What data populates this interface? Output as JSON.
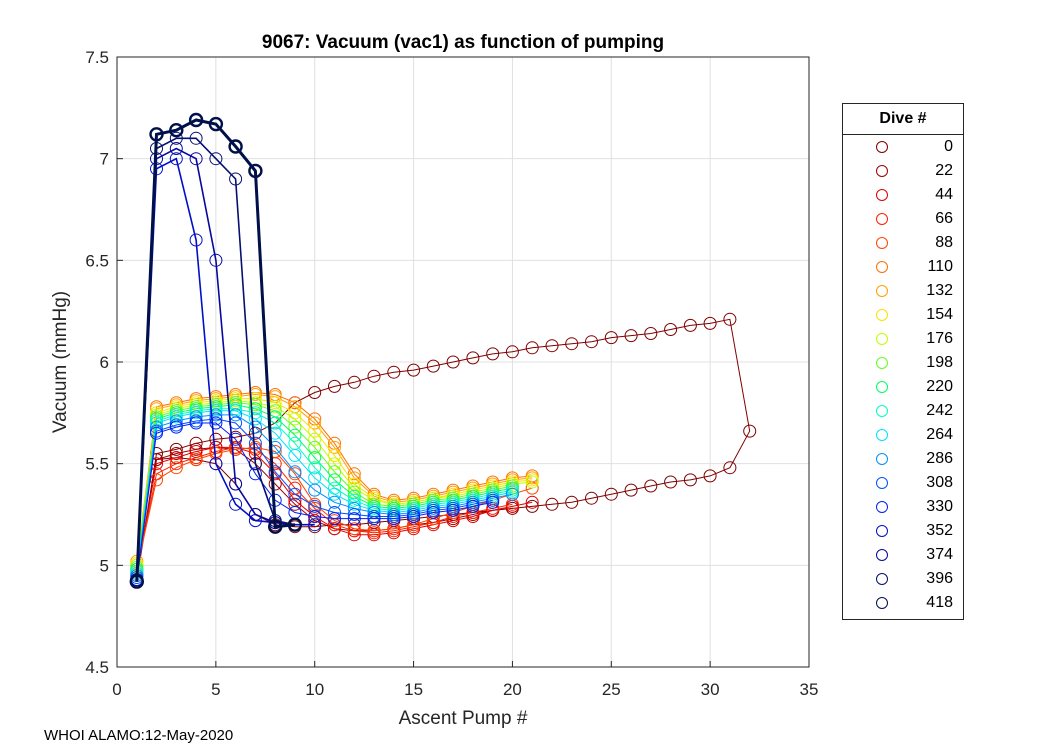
{
  "chart_data": {
    "type": "line",
    "title": "9067: Vacuum (vac1) as function of pumping",
    "xlabel": "Ascent Pump #",
    "ylabel": "Vacuum (mmHg)",
    "xlim": [
      0,
      35
    ],
    "ylim": [
      4.5,
      7.5
    ],
    "xticks": [
      "0",
      "5",
      "10",
      "15",
      "20",
      "25",
      "30",
      "35"
    ],
    "yticks": [
      "4.5",
      "5",
      "5.5",
      "6",
      "6.5",
      "7",
      "7.5"
    ],
    "grid": true,
    "legend_title": "Dive #",
    "legend_position": "outside-right",
    "series": [
      {
        "name": "0",
        "color": "#800000",
        "x": [
          1,
          2,
          3,
          4,
          5,
          6,
          7,
          8,
          9,
          10,
          11,
          12,
          13,
          14,
          15,
          16,
          17,
          18,
          19,
          20,
          21,
          22,
          23,
          24,
          25,
          26,
          27,
          28,
          29,
          30,
          31,
          32,
          31,
          30,
          29,
          28,
          27,
          26,
          25,
          24,
          23,
          22,
          21,
          20,
          19,
          18,
          17,
          16,
          15,
          14,
          13,
          12,
          11,
          10,
          9,
          8,
          7,
          6,
          5,
          4,
          3,
          2,
          1
        ],
        "y": [
          4.93,
          5.55,
          5.57,
          5.6,
          5.62,
          5.63,
          5.65,
          5.7,
          5.8,
          5.85,
          5.88,
          5.9,
          5.93,
          5.95,
          5.96,
          5.98,
          6.0,
          6.02,
          6.04,
          6.05,
          6.07,
          6.08,
          6.09,
          6.1,
          6.12,
          6.13,
          6.14,
          6.16,
          6.18,
          6.19,
          6.21,
          5.66,
          5.48,
          5.44,
          5.42,
          5.41,
          5.39,
          5.37,
          5.35,
          5.33,
          5.31,
          5.3,
          5.29,
          5.28,
          5.27,
          5.26,
          5.25,
          5.24,
          5.23,
          5.22,
          5.21,
          5.2,
          5.2,
          5.19,
          5.19,
          5.2,
          5.25,
          5.4,
          5.5,
          5.52,
          5.53,
          5.52,
          4.93
        ]
      },
      {
        "name": "22",
        "color": "#a00000",
        "x": [
          1,
          2,
          3,
          4,
          5,
          6,
          7,
          8,
          9,
          10,
          11,
          12,
          13,
          14,
          15,
          16,
          17,
          18,
          19,
          20
        ],
        "y": [
          4.95,
          5.52,
          5.55,
          5.57,
          5.58,
          5.57,
          5.5,
          5.4,
          5.3,
          5.22,
          5.18,
          5.17,
          5.17,
          5.18,
          5.2,
          5.21,
          5.23,
          5.25,
          5.27,
          5.29
        ]
      },
      {
        "name": "44",
        "color": "#e00000",
        "x": [
          1,
          2,
          3,
          4,
          5,
          6,
          7,
          8,
          9,
          10,
          11,
          12,
          13,
          14,
          15,
          16,
          17,
          18,
          19,
          20,
          21
        ],
        "y": [
          4.96,
          5.5,
          5.53,
          5.56,
          5.58,
          5.58,
          5.55,
          5.45,
          5.32,
          5.24,
          5.18,
          5.15,
          5.15,
          5.16,
          5.18,
          5.2,
          5.22,
          5.24,
          5.27,
          5.29,
          5.31
        ]
      },
      {
        "name": "66",
        "color": "#ff2000",
        "x": [
          1,
          2,
          3,
          4,
          5,
          6,
          7,
          8,
          9,
          10,
          11,
          12,
          13,
          14,
          15,
          16,
          17,
          18,
          19,
          20
        ],
        "y": [
          4.97,
          5.45,
          5.5,
          5.53,
          5.56,
          5.58,
          5.57,
          5.5,
          5.38,
          5.28,
          5.2,
          5.17,
          5.16,
          5.17,
          5.19,
          5.21,
          5.24,
          5.26,
          5.28,
          5.3
        ]
      },
      {
        "name": "88",
        "color": "#ff4500",
        "x": [
          1,
          2,
          3,
          4,
          5,
          6,
          7,
          8,
          9,
          10,
          11,
          12,
          13,
          14,
          15,
          16,
          17,
          18,
          19,
          20,
          21
        ],
        "y": [
          4.98,
          5.42,
          5.48,
          5.52,
          5.55,
          5.57,
          5.58,
          5.56,
          5.45,
          5.3,
          5.22,
          5.18,
          5.17,
          5.18,
          5.2,
          5.23,
          5.26,
          5.29,
          5.32,
          5.35,
          5.38
        ]
      },
      {
        "name": "110",
        "color": "#ff7000",
        "x": [
          1,
          2,
          3,
          4,
          5,
          6,
          7,
          8,
          9,
          10,
          11,
          12,
          13,
          14,
          15,
          16,
          17,
          18,
          19,
          20,
          21
        ],
        "y": [
          5.0,
          5.78,
          5.8,
          5.82,
          5.83,
          5.84,
          5.85,
          5.84,
          5.8,
          5.72,
          5.6,
          5.45,
          5.35,
          5.32,
          5.33,
          5.35,
          5.37,
          5.39,
          5.41,
          5.43,
          5.44
        ]
      },
      {
        "name": "132",
        "color": "#ffa000",
        "x": [
          1,
          2,
          3,
          4,
          5,
          6,
          7,
          8,
          9,
          10,
          11,
          12,
          13,
          14,
          15,
          16,
          17,
          18,
          19,
          20,
          21
        ],
        "y": [
          5.02,
          5.77,
          5.79,
          5.81,
          5.82,
          5.83,
          5.84,
          5.83,
          5.78,
          5.7,
          5.58,
          5.43,
          5.34,
          5.31,
          5.32,
          5.34,
          5.36,
          5.38,
          5.4,
          5.42,
          5.43
        ]
      },
      {
        "name": "154",
        "color": "#ffe000",
        "x": [
          1,
          2,
          3,
          4,
          5,
          6,
          7,
          8,
          9,
          10,
          11,
          12,
          13,
          14,
          15,
          16,
          17,
          18,
          19,
          20,
          21
        ],
        "y": [
          5.01,
          5.75,
          5.78,
          5.8,
          5.81,
          5.82,
          5.82,
          5.8,
          5.75,
          5.66,
          5.54,
          5.4,
          5.33,
          5.3,
          5.31,
          5.33,
          5.35,
          5.37,
          5.39,
          5.41,
          5.42
        ]
      },
      {
        "name": "176",
        "color": "#c0ff00",
        "x": [
          1,
          2,
          3,
          4,
          5,
          6,
          7,
          8,
          9,
          10,
          11,
          12,
          13,
          14,
          15,
          16,
          17,
          18,
          19,
          20,
          21
        ],
        "y": [
          5.0,
          5.74,
          5.77,
          5.79,
          5.8,
          5.81,
          5.8,
          5.78,
          5.72,
          5.62,
          5.5,
          5.38,
          5.32,
          5.3,
          5.31,
          5.33,
          5.34,
          5.36,
          5.38,
          5.4,
          5.41
        ]
      },
      {
        "name": "198",
        "color": "#60ff20",
        "x": [
          1,
          2,
          3,
          4,
          5,
          6,
          7,
          8,
          9,
          10,
          11,
          12,
          13,
          14,
          15,
          16,
          17,
          18,
          19,
          20
        ],
        "y": [
          4.99,
          5.73,
          5.76,
          5.78,
          5.79,
          5.8,
          5.79,
          5.76,
          5.68,
          5.58,
          5.46,
          5.36,
          5.3,
          5.29,
          5.3,
          5.32,
          5.33,
          5.35,
          5.37,
          5.39
        ]
      },
      {
        "name": "220",
        "color": "#00ff60",
        "x": [
          1,
          2,
          3,
          4,
          5,
          6,
          7,
          8,
          9,
          10,
          11,
          12,
          13,
          14,
          15,
          16,
          17,
          18,
          19,
          20
        ],
        "y": [
          4.98,
          5.72,
          5.75,
          5.77,
          5.78,
          5.79,
          5.77,
          5.73,
          5.64,
          5.53,
          5.42,
          5.34,
          5.29,
          5.28,
          5.29,
          5.31,
          5.32,
          5.34,
          5.36,
          5.38
        ]
      },
      {
        "name": "242",
        "color": "#00ffc0",
        "x": [
          1,
          2,
          3,
          4,
          5,
          6,
          7,
          8,
          9,
          10,
          11,
          12,
          13,
          14,
          15,
          16,
          17,
          18,
          19,
          20
        ],
        "y": [
          4.97,
          5.71,
          5.74,
          5.76,
          5.77,
          5.77,
          5.75,
          5.7,
          5.6,
          5.48,
          5.38,
          5.32,
          5.28,
          5.27,
          5.28,
          5.3,
          5.31,
          5.33,
          5.35,
          5.37
        ]
      },
      {
        "name": "264",
        "color": "#00e0ff",
        "x": [
          1,
          2,
          3,
          4,
          5,
          6,
          7,
          8,
          9,
          10,
          11,
          12,
          13,
          14,
          15,
          16,
          17,
          18,
          19,
          20
        ],
        "y": [
          4.96,
          5.7,
          5.73,
          5.75,
          5.76,
          5.76,
          5.72,
          5.65,
          5.54,
          5.43,
          5.35,
          5.3,
          5.27,
          5.26,
          5.27,
          5.29,
          5.3,
          5.32,
          5.34,
          5.36
        ]
      },
      {
        "name": "286",
        "color": "#0090ff",
        "x": [
          1,
          2,
          3,
          4,
          5,
          6,
          7,
          8,
          9,
          10,
          11,
          12,
          13,
          14,
          15,
          16,
          17,
          18,
          19,
          20
        ],
        "y": [
          4.95,
          5.68,
          5.71,
          5.73,
          5.74,
          5.74,
          5.68,
          5.58,
          5.46,
          5.37,
          5.31,
          5.28,
          5.26,
          5.25,
          5.26,
          5.28,
          5.29,
          5.31,
          5.33,
          5.35
        ]
      },
      {
        "name": "308",
        "color": "#0050ff",
        "x": [
          1,
          2,
          3,
          4,
          5,
          6,
          7,
          8,
          9,
          10,
          11,
          12,
          13,
          14,
          15,
          16,
          17,
          18,
          19
        ],
        "y": [
          4.94,
          5.66,
          5.69,
          5.71,
          5.72,
          5.7,
          5.6,
          5.46,
          5.35,
          5.29,
          5.26,
          5.25,
          5.24,
          5.24,
          5.25,
          5.27,
          5.28,
          5.3,
          5.32
        ]
      },
      {
        "name": "330",
        "color": "#0020f0",
        "x": [
          1,
          2,
          3,
          4,
          5,
          6,
          7,
          8,
          9,
          10,
          11,
          12,
          13,
          14,
          15,
          16,
          17,
          18,
          19
        ],
        "y": [
          4.93,
          5.65,
          5.68,
          5.7,
          5.7,
          5.62,
          5.45,
          5.32,
          5.26,
          5.24,
          5.23,
          5.23,
          5.23,
          5.23,
          5.24,
          5.26,
          5.27,
          5.29,
          5.31
        ]
      },
      {
        "name": "352",
        "color": "#0010c8",
        "x": [
          1,
          2,
          3,
          4,
          5,
          6,
          7,
          8,
          9,
          10
        ],
        "y": [
          4.93,
          6.95,
          7.0,
          6.6,
          5.5,
          5.3,
          5.22,
          5.21,
          5.2,
          5.2
        ]
      },
      {
        "name": "374",
        "color": "#0808a0",
        "x": [
          1,
          2,
          3,
          4,
          5,
          6,
          7,
          8,
          9
        ],
        "y": [
          4.93,
          7.0,
          7.05,
          7.0,
          6.5,
          5.4,
          5.25,
          5.21,
          5.2
        ]
      },
      {
        "name": "396",
        "color": "#061070",
        "x": [
          1,
          2,
          3,
          4,
          5,
          6,
          7,
          8,
          9
        ],
        "y": [
          4.92,
          7.05,
          7.1,
          7.1,
          7.0,
          6.9,
          5.5,
          5.22,
          5.2
        ]
      },
      {
        "name": "418",
        "color": "#00104a",
        "x": [
          1,
          2,
          3,
          4,
          5,
          6,
          7,
          8,
          9
        ],
        "y": [
          4.92,
          7.12,
          7.14,
          7.19,
          7.17,
          7.06,
          6.94,
          5.19,
          5.2
        ]
      }
    ],
    "footer": "WHOI ALAMO:12-May-2020"
  }
}
